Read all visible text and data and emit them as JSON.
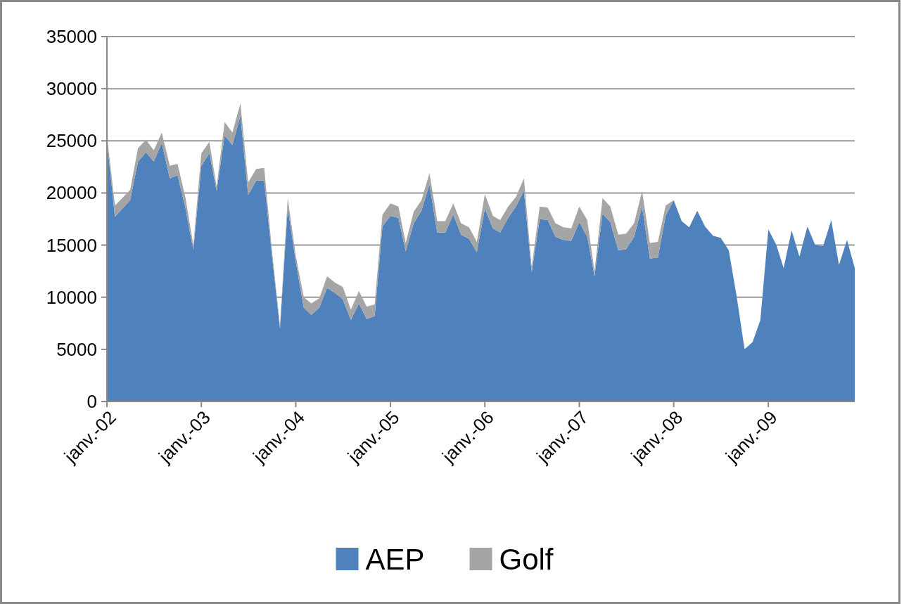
{
  "chart_data": {
    "type": "area",
    "stacked": true,
    "x": [
      "2002-01",
      "2002-02",
      "2002-03",
      "2002-04",
      "2002-05",
      "2002-06",
      "2002-07",
      "2002-08",
      "2002-09",
      "2002-10",
      "2002-11",
      "2002-12",
      "2003-01",
      "2003-02",
      "2003-03",
      "2003-04",
      "2003-05",
      "2003-06",
      "2003-07",
      "2003-08",
      "2003-09",
      "2003-10",
      "2003-11",
      "2003-12",
      "2004-01",
      "2004-02",
      "2004-03",
      "2004-04",
      "2004-05",
      "2004-06",
      "2004-07",
      "2004-08",
      "2004-09",
      "2004-10",
      "2004-11",
      "2004-12",
      "2005-01",
      "2005-02",
      "2005-03",
      "2005-04",
      "2005-05",
      "2005-06",
      "2005-07",
      "2005-08",
      "2005-09",
      "2005-10",
      "2005-11",
      "2005-12",
      "2006-01",
      "2006-02",
      "2006-03",
      "2006-04",
      "2006-05",
      "2006-06",
      "2006-07",
      "2006-08",
      "2006-09",
      "2006-10",
      "2006-11",
      "2006-12",
      "2007-01",
      "2007-02",
      "2007-03",
      "2007-04",
      "2007-05",
      "2007-06",
      "2007-07",
      "2007-08",
      "2007-09",
      "2007-10",
      "2007-11",
      "2007-12",
      "2008-01",
      "2008-02",
      "2008-03",
      "2008-04",
      "2008-05",
      "2008-06",
      "2008-07",
      "2008-08",
      "2008-09",
      "2008-10",
      "2008-11",
      "2008-12",
      "2009-01",
      "2009-02",
      "2009-03",
      "2009-04",
      "2009-05",
      "2009-06",
      "2009-07",
      "2009-08",
      "2009-09",
      "2009-10",
      "2009-11",
      "2009-12"
    ],
    "series": [
      {
        "name": "AEP",
        "color": "#4f81bd",
        "values": [
          25000,
          17700,
          18500,
          19300,
          23000,
          23900,
          23000,
          24800,
          21400,
          21700,
          18500,
          14500,
          22600,
          23800,
          20200,
          25500,
          24600,
          27400,
          19800,
          21200,
          21200,
          14000,
          7000,
          18600,
          13400,
          9000,
          8300,
          9000,
          10900,
          10400,
          9800,
          7800,
          9400,
          7900,
          8200,
          16800,
          17800,
          17600,
          14400,
          17100,
          18300,
          20800,
          16200,
          16200,
          17900,
          16000,
          15600,
          14300,
          18500,
          16600,
          16200,
          17600,
          18700,
          20200,
          12400,
          17500,
          17400,
          15800,
          15500,
          15400,
          17200,
          15800,
          12000,
          18000,
          17200,
          14500,
          14600,
          15800,
          18700,
          13700,
          13800,
          17800,
          19300,
          17300,
          16700,
          18300,
          16800,
          15900,
          15700,
          14500,
          10000,
          5000,
          5700,
          7800,
          16500,
          15000,
          12800,
          16400,
          13900,
          16800,
          15000,
          14900,
          17400,
          13100,
          15500,
          12800
        ]
      },
      {
        "name": "Golf",
        "color": "#a5a5a5",
        "values": [
          500,
          1100,
          1000,
          1000,
          1300,
          1200,
          1100,
          1000,
          1200,
          1100,
          1000,
          500,
          1200,
          1100,
          400,
          1300,
          1200,
          1200,
          1200,
          1100,
          1200,
          500,
          300,
          900,
          600,
          1000,
          1100,
          900,
          1100,
          1000,
          1200,
          1000,
          1200,
          1200,
          1100,
          1100,
          1200,
          1100,
          800,
          1100,
          1000,
          1100,
          1100,
          1100,
          1100,
          1100,
          1100,
          1000,
          1400,
          1200,
          1200,
          1100,
          900,
          1200,
          500,
          1200,
          1200,
          1300,
          1200,
          1200,
          1500,
          1600,
          500,
          1500,
          1500,
          1500,
          1500,
          1300,
          1500,
          1500,
          1500,
          1000,
          0,
          0,
          0,
          0,
          0,
          0,
          0,
          0,
          0,
          0,
          0,
          0,
          0,
          0,
          0,
          0,
          0,
          0,
          0,
          0,
          0,
          0,
          0,
          0
        ]
      }
    ],
    "xlim": [
      "2002-01",
      "2009-12"
    ],
    "xticks": [
      {
        "value": "2002-01",
        "label": "janv.-02"
      },
      {
        "value": "2003-01",
        "label": "janv.-03"
      },
      {
        "value": "2004-01",
        "label": "janv.-04"
      },
      {
        "value": "2005-01",
        "label": "janv.-05"
      },
      {
        "value": "2006-01",
        "label": "janv.-06"
      },
      {
        "value": "2007-01",
        "label": "janv.-07"
      },
      {
        "value": "2008-01",
        "label": "janv.-08"
      },
      {
        "value": "2009-01",
        "label": "janv.-09"
      }
    ],
    "ylim": [
      0,
      35000
    ],
    "yticks": [
      0,
      5000,
      10000,
      15000,
      20000,
      25000,
      30000,
      35000
    ],
    "grid": "y",
    "legend": "bottom"
  }
}
